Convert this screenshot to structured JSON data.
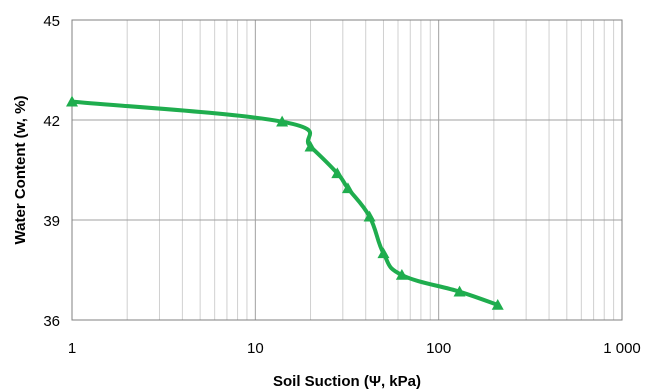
{
  "chart_data": {
    "type": "line",
    "title": "",
    "xlabel": "Soil Suction (Ψ, kPa)",
    "ylabel": "Water Content (w, %)",
    "x_scale": "log",
    "xlim": [
      1,
      1000
    ],
    "ylim": [
      36,
      45
    ],
    "x_ticks": [
      1,
      10,
      100,
      1000
    ],
    "x_tick_labels": [
      "1",
      "10",
      "100",
      "1 000"
    ],
    "y_ticks": [
      36,
      39,
      42,
      45
    ],
    "y_tick_labels": [
      "36",
      "39",
      "42",
      "45"
    ],
    "grid": true,
    "legend": "none",
    "marker": "triangle",
    "series": [
      {
        "color": "#1fad4e",
        "points": [
          {
            "x": 1,
            "y": 42.55
          },
          {
            "x": 14,
            "y": 41.95
          },
          {
            "x": 20,
            "y": 41.2
          },
          {
            "x": 28,
            "y": 40.4
          },
          {
            "x": 32,
            "y": 39.95
          },
          {
            "x": 42,
            "y": 39.1
          },
          {
            "x": 50,
            "y": 38.0
          },
          {
            "x": 63,
            "y": 37.35
          },
          {
            "x": 130,
            "y": 36.85
          },
          {
            "x": 210,
            "y": 36.45
          }
        ]
      }
    ]
  }
}
